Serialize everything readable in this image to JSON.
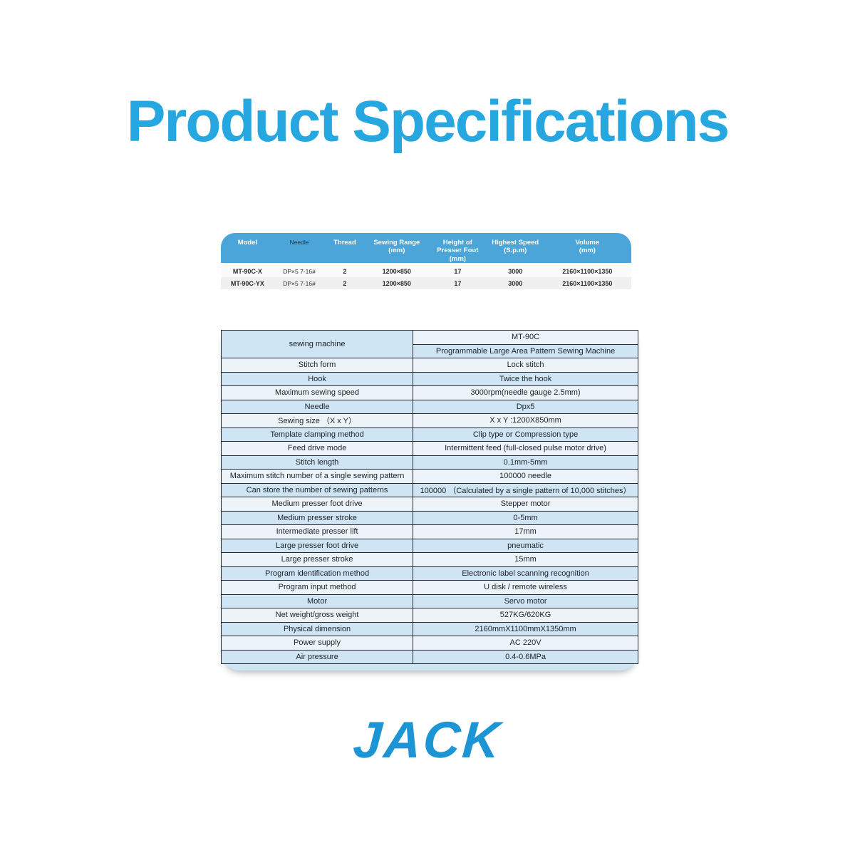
{
  "page": {
    "title": "Product Specifications",
    "brand": "JACK"
  },
  "colors": {
    "title_blue": "#27a7e0",
    "header_blue": "#4ba5d8",
    "row_blue": "#cfe5f3",
    "row_light": "#ecf4fa",
    "logo_blue": "#1d95d4",
    "border_dark": "#262b33"
  },
  "model_table": {
    "headers": {
      "model": "Model",
      "needle": "Needle",
      "thread": "Thread",
      "sewing_range": "Sewing Range\n(mm)",
      "presser_foot": "Height of\nPresser Foot\n(mm)",
      "highest_speed": "Highest Speed\n(S.p.m)",
      "volume": "Volume\n(mm)"
    },
    "rows": [
      {
        "model": "MT-90C-X",
        "needle": "DP×5 7-16#",
        "thread": "2",
        "sewing_range": "1200×850",
        "presser_foot": "17",
        "highest_speed": "3000",
        "volume": "2160×1100×1350"
      },
      {
        "model": "MT-90C-YX",
        "needle": "DP×5 7-16#",
        "thread": "2",
        "sewing_range": "1200×850",
        "presser_foot": "17",
        "highest_speed": "3000",
        "volume": "2160×1100×1350"
      }
    ]
  },
  "spec_table": {
    "machine": {
      "label": "sewing machine",
      "model": "MT-90C",
      "name": "Programmable Large Area Pattern Sewing Machine"
    },
    "rows": [
      {
        "label": "Stitch form",
        "value": "Lock stitch"
      },
      {
        "label": "Hook",
        "value": "Twice the hook"
      },
      {
        "label": "Maximum sewing speed",
        "value": "3000rpm(needle gauge 2.5mm)"
      },
      {
        "label": "Needle",
        "value": "Dpx5"
      },
      {
        "label": "Sewing size （X x Y）",
        "value": "X x Y :1200X850mm"
      },
      {
        "label": "Template clamping method",
        "value": "Clip type or Compression type"
      },
      {
        "label": "Feed drive mode",
        "value": "Intermittent feed (full-closed pulse motor drive)"
      },
      {
        "label": "Stitch length",
        "value": "0.1mm-5mm"
      },
      {
        "label": "Maximum stitch number of a single sewing pattern",
        "value": "100000 needle"
      },
      {
        "label": "Can store the number of sewing patterns",
        "value": "100000 （Calculated by a single pattern of 10,000 stitches）"
      },
      {
        "label": "Medium presser foot drive",
        "value": "Stepper motor"
      },
      {
        "label": "Medium presser stroke",
        "value": "0-5mm"
      },
      {
        "label": "Intermediate presser lift",
        "value": "17mm"
      },
      {
        "label": "Large presser foot drive",
        "value": "pneumatic"
      },
      {
        "label": "Large presser stroke",
        "value": "15mm"
      },
      {
        "label": "Program identification method",
        "value": "Electronic label scanning recognition"
      },
      {
        "label": "Program input method",
        "value": "U disk / remote wireless"
      },
      {
        "label": "Motor",
        "value": "Servo motor"
      },
      {
        "label": "Net weight/gross weight",
        "value": "527KG/620KG"
      },
      {
        "label": "Physical dimension",
        "value": "2160mmX1100mmX1350mm"
      },
      {
        "label": "Power supply",
        "value": "AC 220V"
      },
      {
        "label": "Air pressure",
        "value": "0.4-0.6MPa"
      }
    ]
  }
}
